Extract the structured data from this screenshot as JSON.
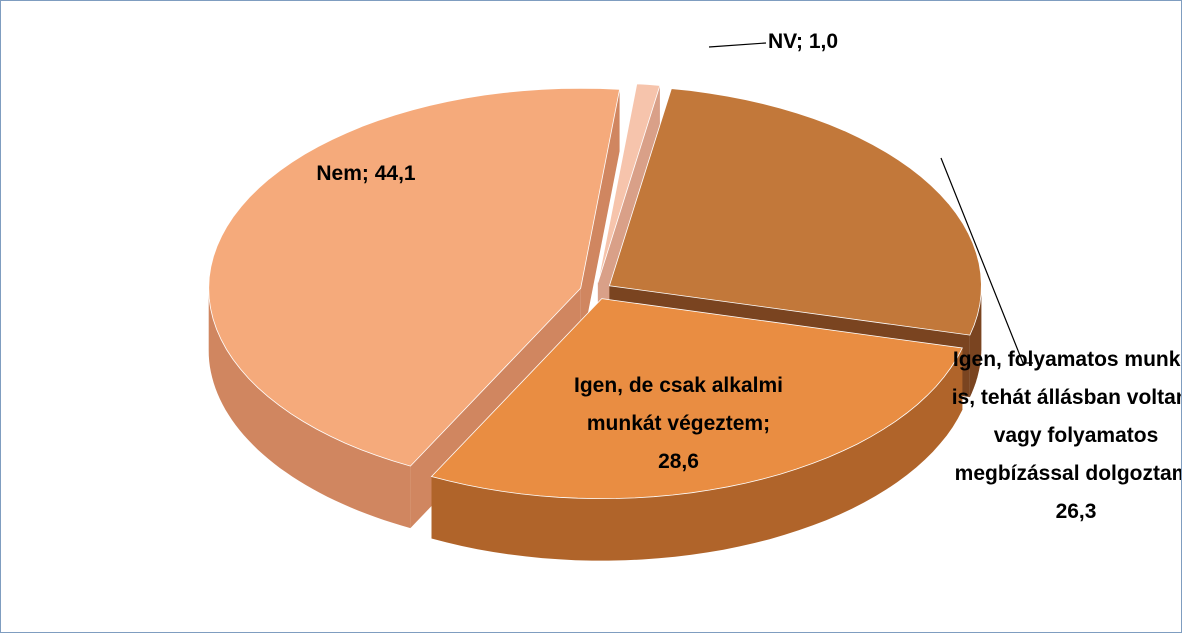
{
  "chart_data": {
    "type": "pie",
    "categories": [
      "NV",
      "Igen, folyamatos munkát is, tehát állásban voltam, vagy folyamatos megbízással dolgoztam",
      "Igen, de csak alkalmi munkát végeztem",
      "Nem"
    ],
    "values": [
      1.0,
      26.3,
      28.6,
      44.1
    ],
    "value_labels": [
      "1,0",
      "26,3",
      "28,6",
      "44,1"
    ],
    "label_separator": "; ",
    "colors": [
      "#f6c4ac",
      "#c2783a",
      "#e98d42",
      "#f5aa7b"
    ],
    "side_colors": [
      "#d9a088",
      "#7a4420",
      "#b0642a",
      "#d08660"
    ]
  }
}
